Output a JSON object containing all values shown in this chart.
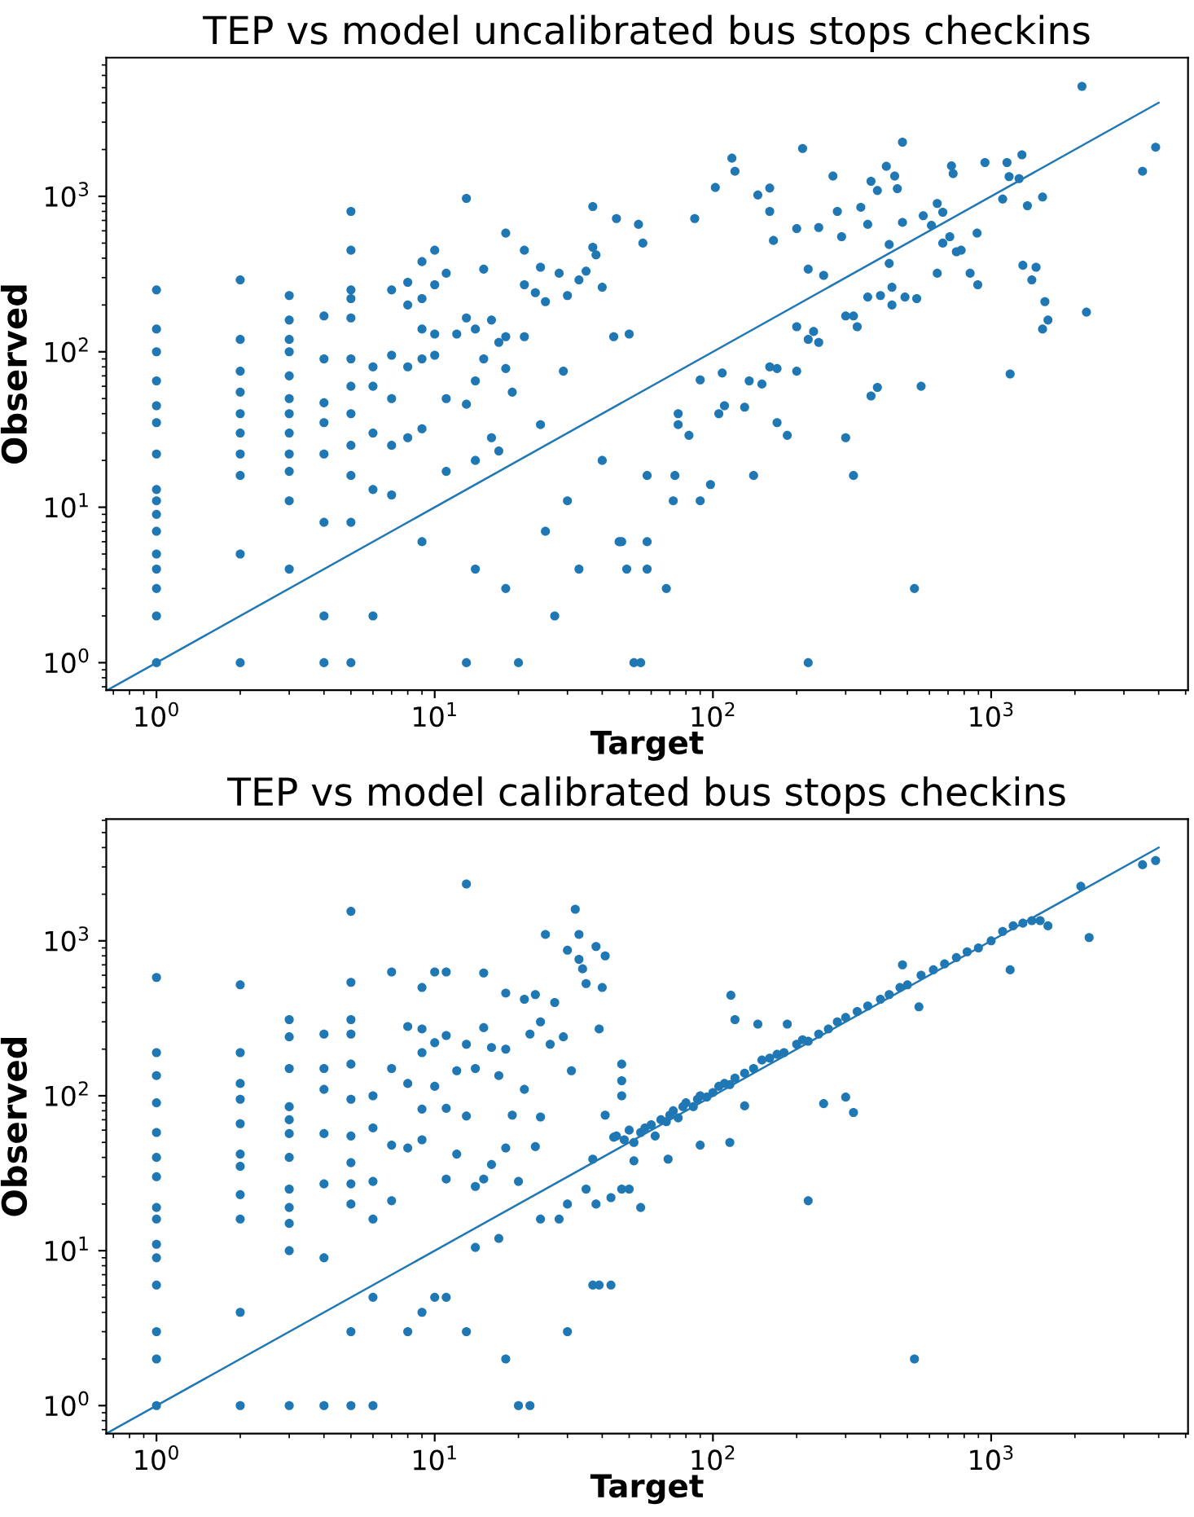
{
  "chart_data": [
    {
      "type": "scatter",
      "title": "TEP vs model uncalibrated bus stops checkins",
      "xlabel": "Target",
      "ylabel": "Observed",
      "log": "xy",
      "grid": false,
      "legend": false,
      "xlim": [
        0.66,
        5100
      ],
      "ylim": [
        0.665,
        7800
      ],
      "xticks": [
        {
          "value": 1,
          "label": "10$^{0}$"
        },
        {
          "value": 10,
          "label": "10$^{1}$"
        },
        {
          "value": 100,
          "label": "10$^{2}$"
        },
        {
          "value": 1000,
          "label": "10$^{3}$"
        }
      ],
      "yticks": [
        {
          "value": 1,
          "label": "10$^{0}$"
        },
        {
          "value": 10,
          "label": "10$^{1}$"
        },
        {
          "value": 100,
          "label": "10$^{2}$"
        },
        {
          "value": 1000,
          "label": "10$^{3}$"
        }
      ],
      "series": [
        {
          "marker": "circle",
          "color": "#1f77b4",
          "x": [
            1,
            1,
            1,
            1,
            1,
            1,
            1,
            1,
            1,
            1,
            1,
            1,
            1,
            1,
            1,
            1,
            2,
            2,
            2,
            2,
            2,
            2,
            2,
            2,
            2,
            2,
            3,
            3,
            3,
            3,
            3,
            3,
            3,
            3,
            3,
            3,
            3,
            3,
            4,
            4,
            4,
            4,
            4,
            4,
            4,
            4,
            5,
            5,
            5,
            5,
            5,
            5,
            5,
            5,
            5,
            5,
            5,
            5,
            6,
            6,
            6,
            6,
            6,
            7,
            7,
            7,
            7,
            7,
            8,
            8,
            8,
            8,
            9,
            9,
            9,
            9,
            9,
            9,
            10,
            10,
            10,
            10,
            11,
            11,
            11,
            12,
            13,
            13,
            13,
            13,
            14,
            14,
            14,
            14,
            15,
            15,
            16,
            16,
            17,
            17,
            18,
            18,
            18,
            18,
            19,
            20,
            21,
            21,
            21,
            23,
            24,
            24,
            25,
            25,
            27,
            28,
            29,
            30,
            30,
            33,
            33,
            35,
            37,
            37,
            38,
            40,
            40,
            44,
            45,
            46,
            49,
            50,
            52,
            54,
            56,
            58,
            47,
            55,
            58,
            58,
            68,
            72,
            73,
            75,
            75,
            82,
            86,
            90,
            90,
            98,
            102,
            105,
            108,
            110,
            117,
            120,
            130,
            135,
            140,
            145,
            150,
            160,
            160,
            160,
            165,
            170,
            170,
            185,
            200,
            200,
            200,
            210,
            220,
            220,
            220,
            230,
            240,
            240,
            250,
            270,
            280,
            290,
            300,
            300,
            320,
            320,
            330,
            340,
            360,
            360,
            370,
            370,
            390,
            390,
            400,
            420,
            430,
            430,
            440,
            440,
            450,
            460,
            480,
            480,
            490,
            530,
            540,
            560,
            570,
            610,
            640,
            640,
            670,
            670,
            710,
            720,
            730,
            750,
            780,
            840,
            890,
            895,
            950,
            1100,
            1140,
            1160,
            1170,
            1260,
            1290,
            1300,
            1350,
            1400,
            1450,
            1530,
            1530,
            1560,
            1600,
            2120,
            2200,
            3500,
            3900
          ],
          "values": [
            250,
            140,
            100,
            65,
            45,
            35,
            22,
            13,
            11,
            9,
            7,
            5,
            4,
            3,
            2,
            1,
            290,
            120,
            75,
            55,
            40,
            30,
            22,
            16,
            5,
            1,
            230,
            160,
            120,
            100,
            70,
            50,
            40,
            30,
            22,
            17,
            11,
            4,
            170,
            90,
            47,
            35,
            22,
            8,
            2,
            1,
            800,
            450,
            250,
            220,
            165,
            90,
            60,
            40,
            25,
            16,
            8,
            1,
            80,
            60,
            30,
            13,
            2,
            250,
            95,
            50,
            25,
            12,
            280,
            200,
            80,
            28,
            380,
            220,
            140,
            90,
            32,
            6,
            450,
            270,
            130,
            95,
            320,
            50,
            17,
            130,
            970,
            165,
            46,
            1,
            140,
            65,
            20,
            4,
            340,
            90,
            160,
            28,
            115,
            23,
            580,
            125,
            78,
            3,
            55,
            1,
            270,
            450,
            125,
            240,
            350,
            34,
            210,
            7,
            2,
            320,
            75,
            230,
            11,
            290,
            4,
            330,
            860,
            470,
            420,
            260,
            20,
            125,
            720,
            6,
            4,
            130,
            1,
            660,
            500,
            6,
            6,
            1,
            4,
            16,
            3,
            11,
            16,
            40,
            34,
            29,
            720,
            11,
            66,
            14,
            1140,
            40,
            73,
            45,
            1760,
            1450,
            44,
            65,
            16,
            1020,
            62,
            800,
            1130,
            80,
            520,
            35,
            78,
            29,
            620,
            145,
            75,
            2030,
            340,
            120,
            1,
            135,
            630,
            115,
            310,
            1350,
            800,
            550,
            28,
            170,
            16,
            170,
            145,
            850,
            660,
            225,
            52,
            1250,
            59,
            1090,
            230,
            1560,
            490,
            370,
            260,
            200,
            1350,
            1120,
            680,
            2230,
            225,
            3,
            220,
            60,
            750,
            650,
            900,
            320,
            790,
            500,
            550,
            1570,
            1400,
            440,
            450,
            320,
            580,
            270,
            1650,
            960,
            1650,
            1340,
            72,
            1300,
            1850,
            360,
            870,
            290,
            350,
            990,
            140,
            210,
            160,
            5100,
            180,
            1450,
            2070
          ]
        },
        {
          "type": "line",
          "marker": "none",
          "color": "#1f77b4",
          "x": [
            0.67,
            4000
          ],
          "values": [
            0.67,
            4000
          ]
        }
      ]
    },
    {
      "type": "scatter",
      "title": "TEP vs model calibrated bus stops checkins",
      "xlabel": "Target",
      "ylabel": "Observed",
      "log": "xy",
      "grid": false,
      "legend": false,
      "xlim": [
        0.66,
        5100
      ],
      "ylim": [
        0.66,
        6100
      ],
      "xticks": [
        {
          "value": 1,
          "label": "10$^{0}$"
        },
        {
          "value": 10,
          "label": "10$^{1}$"
        },
        {
          "value": 100,
          "label": "10$^{2}$"
        },
        {
          "value": 1000,
          "label": "10$^{3}$"
        }
      ],
      "yticks": [
        {
          "value": 1,
          "label": "10$^{0}$"
        },
        {
          "value": 10,
          "label": "10$^{1}$"
        },
        {
          "value": 100,
          "label": "10$^{2}$"
        },
        {
          "value": 1000,
          "label": "10$^{3}$"
        }
      ],
      "series": [
        {
          "marker": "circle",
          "color": "#1f77b4",
          "x": [
            1,
            1,
            1,
            1,
            1,
            1,
            1,
            1,
            1,
            1,
            1,
            1,
            1,
            1,
            1,
            2,
            2,
            2,
            2,
            2,
            2,
            2,
            2,
            2,
            2,
            2,
            3,
            3,
            3,
            3,
            3,
            3,
            3,
            3,
            3,
            3,
            3,
            3,
            4,
            4,
            4,
            4,
            4,
            4,
            4,
            5,
            5,
            5,
            5,
            5,
            5,
            5,
            5,
            5,
            5,
            5,
            5,
            6,
            6,
            6,
            6,
            6,
            6,
            7,
            7,
            7,
            7,
            8,
            8,
            8,
            8,
            9,
            9,
            9,
            9,
            9,
            9,
            10,
            10,
            10,
            10,
            11,
            11,
            11,
            11,
            11,
            12,
            12,
            13,
            13,
            13,
            13,
            14,
            14,
            14,
            15,
            15,
            15,
            16,
            16,
            17,
            17,
            18,
            18,
            18,
            18,
            19,
            20,
            20,
            21,
            21,
            22,
            22,
            23,
            23,
            24,
            24,
            24,
            25,
            26,
            27,
            28,
            29,
            30,
            30,
            30,
            31,
            32,
            33,
            33,
            34,
            35,
            35,
            37,
            37,
            38,
            38,
            39,
            39,
            40,
            41,
            41,
            43,
            43,
            44,
            47,
            50,
            45,
            47,
            47,
            48,
            50,
            52,
            55,
            57,
            60,
            62,
            65,
            68,
            70,
            72,
            75,
            78,
            80,
            85,
            88,
            90,
            95,
            100,
            105,
            110,
            115,
            120,
            130,
            140,
            150,
            160,
            170,
            180,
            200,
            210,
            220,
            240,
            260,
            280,
            300,
            330,
            360,
            400,
            430,
            470,
            500,
            560,
            620,
            680,
            750,
            820,
            900,
            1000,
            1100,
            1200,
            1300,
            1400,
            1500,
            1600,
            2100,
            3500,
            3900,
            116,
            120,
            145,
            90,
            69,
            52,
            55,
            47,
            220,
            250,
            300,
            320,
            530,
            480,
            550,
            1170,
            2250,
            185,
            130,
            115
          ],
          "values": [
            580,
            190,
            135,
            90,
            58,
            40,
            30,
            19,
            16,
            11,
            9,
            6,
            3,
            2,
            1,
            520,
            190,
            120,
            95,
            66,
            42,
            35,
            23,
            16,
            4,
            1,
            310,
            240,
            150,
            85,
            70,
            57,
            40,
            25,
            19,
            15,
            10,
            1,
            250,
            150,
            110,
            57,
            27,
            9,
            1,
            1550,
            540,
            310,
            250,
            160,
            95,
            55,
            37,
            27,
            20,
            3,
            1,
            100,
            62,
            28,
            16,
            5,
            1,
            630,
            150,
            48,
            21,
            280,
            120,
            46,
            3,
            500,
            270,
            190,
            82,
            52,
            4,
            630,
            220,
            115,
            5,
            630,
            245,
            83,
            29,
            5,
            145,
            42,
            2330,
            215,
            74,
            3,
            150,
            26,
            10.5,
            620,
            275,
            29,
            205,
            36,
            135,
            12,
            460,
            200,
            46,
            2,
            75,
            28,
            1,
            420,
            110,
            1,
            250,
            450,
            47,
            300,
            73,
            16,
            1100,
            215,
            400,
            16,
            240,
            870,
            20,
            3,
            145,
            1600,
            760,
            1100,
            660,
            25,
            530,
            39,
            6,
            920,
            20,
            270,
            6,
            500,
            75,
            800,
            6,
            22,
            54,
            100,
            25,
            55,
            125,
            160,
            52,
            60,
            50,
            58,
            62,
            65,
            55,
            70,
            68,
            75,
            80,
            72,
            85,
            90,
            85,
            95,
            100,
            98,
            105,
            115,
            120,
            118,
            130,
            140,
            150,
            170,
            175,
            185,
            190,
            215,
            230,
            225,
            250,
            270,
            300,
            320,
            350,
            380,
            420,
            450,
            500,
            520,
            600,
            650,
            710,
            780,
            850,
            900,
            1000,
            1150,
            1250,
            1300,
            1350,
            1350,
            1250,
            2250,
            3100,
            3300,
            445,
            310,
            290,
            48,
            39,
            38,
            19,
            25,
            21,
            89,
            98,
            78,
            2,
            700,
            375,
            650,
            1050,
            290,
            86,
            50
          ]
        },
        {
          "type": "line",
          "marker": "none",
          "color": "#1f77b4",
          "x": [
            0.67,
            4000
          ],
          "values": [
            0.67,
            4000
          ]
        }
      ]
    }
  ]
}
